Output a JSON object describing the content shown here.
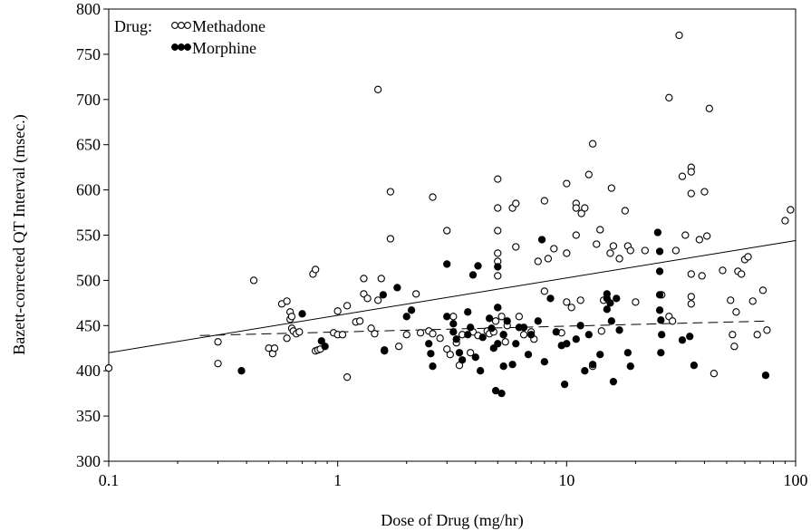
{
  "chart_data": {
    "type": "scatter",
    "xlabel": "Dose of Drug (mg/hr)",
    "ylabel": "Bazett-corrected QT Interval (msec.)",
    "x_scale": "log",
    "xlim": [
      0.1,
      100
    ],
    "ylim": [
      300,
      800
    ],
    "x_ticks": [
      0.1,
      1,
      10,
      100
    ],
    "x_tick_labels": [
      "0.1",
      "1",
      "10",
      "100"
    ],
    "y_ticks": [
      300,
      350,
      400,
      450,
      500,
      550,
      600,
      650,
      700,
      750,
      800
    ],
    "y_tick_labels": [
      "300",
      "350",
      "400",
      "450",
      "500",
      "550",
      "600",
      "650",
      "700",
      "750",
      "800"
    ],
    "grid": false,
    "legend": {
      "title": "Drug:",
      "placement": "top-left",
      "entries": [
        "Methadone",
        "Morphine"
      ]
    },
    "series": [
      {
        "name": "Methadone",
        "marker": "open-circle",
        "color": "#000000",
        "trend": {
          "style": "solid",
          "x": [
            0.1,
            100
          ],
          "y": [
            420,
            544
          ]
        },
        "points": [
          [
            0.1,
            403
          ],
          [
            0.3,
            432
          ],
          [
            0.3,
            408
          ],
          [
            0.43,
            500
          ],
          [
            0.5,
            425
          ],
          [
            0.52,
            419
          ],
          [
            0.53,
            425
          ],
          [
            0.57,
            474
          ],
          [
            0.6,
            436
          ],
          [
            0.6,
            477
          ],
          [
            0.62,
            457
          ],
          [
            0.62,
            465
          ],
          [
            0.63,
            460
          ],
          [
            0.63,
            447
          ],
          [
            0.64,
            444
          ],
          [
            0.66,
            441
          ],
          [
            0.68,
            443
          ],
          [
            0.78,
            507
          ],
          [
            0.8,
            512
          ],
          [
            0.8,
            422
          ],
          [
            0.82,
            423
          ],
          [
            0.84,
            424
          ],
          [
            0.96,
            442
          ],
          [
            1.0,
            440
          ],
          [
            1.0,
            466
          ],
          [
            1.05,
            440
          ],
          [
            1.1,
            393
          ],
          [
            1.1,
            472
          ],
          [
            1.2,
            454
          ],
          [
            1.25,
            455
          ],
          [
            1.3,
            502
          ],
          [
            1.3,
            485
          ],
          [
            1.35,
            480
          ],
          [
            1.4,
            447
          ],
          [
            1.45,
            441
          ],
          [
            1.5,
            711
          ],
          [
            1.5,
            478
          ],
          [
            1.55,
            502
          ],
          [
            1.6,
            423
          ],
          [
            1.7,
            598
          ],
          [
            1.7,
            546
          ],
          [
            1.85,
            427
          ],
          [
            2.0,
            440
          ],
          [
            2.2,
            485
          ],
          [
            2.3,
            442
          ],
          [
            2.5,
            444
          ],
          [
            2.6,
            592
          ],
          [
            2.6,
            441
          ],
          [
            2.8,
            436
          ],
          [
            3.0,
            555
          ],
          [
            3.0,
            424
          ],
          [
            3.1,
            418
          ],
          [
            3.2,
            460
          ],
          [
            3.3,
            431
          ],
          [
            3.4,
            406
          ],
          [
            3.5,
            440
          ],
          [
            3.8,
            420
          ],
          [
            3.9,
            443
          ],
          [
            4.1,
            439
          ],
          [
            4.5,
            444
          ],
          [
            4.6,
            441
          ],
          [
            4.8,
            443
          ],
          [
            4.9,
            455
          ],
          [
            5.0,
            612
          ],
          [
            5.0,
            580
          ],
          [
            5.0,
            555
          ],
          [
            5.0,
            530
          ],
          [
            5.0,
            521
          ],
          [
            5.0,
            505
          ],
          [
            5.0,
            470
          ],
          [
            5.2,
            460
          ],
          [
            5.3,
            440
          ],
          [
            5.4,
            432
          ],
          [
            5.5,
            450
          ],
          [
            5.8,
            580
          ],
          [
            6.0,
            585
          ],
          [
            6.0,
            537
          ],
          [
            6.2,
            460
          ],
          [
            6.5,
            440
          ],
          [
            7.0,
            443
          ],
          [
            7.2,
            435
          ],
          [
            7.5,
            521
          ],
          [
            8.0,
            588
          ],
          [
            8.0,
            488
          ],
          [
            8.3,
            524
          ],
          [
            8.8,
            535
          ],
          [
            9.5,
            442
          ],
          [
            10.0,
            607
          ],
          [
            10.0,
            530
          ],
          [
            10.0,
            476
          ],
          [
            10.5,
            470
          ],
          [
            11.0,
            585
          ],
          [
            11.0,
            580
          ],
          [
            11.0,
            550
          ],
          [
            11.5,
            478
          ],
          [
            11.6,
            574
          ],
          [
            12.0,
            580
          ],
          [
            12.5,
            617
          ],
          [
            13.0,
            651
          ],
          [
            13.0,
            405
          ],
          [
            13.5,
            540
          ],
          [
            14.0,
            556
          ],
          [
            14.2,
            444
          ],
          [
            14.5,
            478
          ],
          [
            15.5,
            530
          ],
          [
            15.7,
            602
          ],
          [
            16.0,
            538
          ],
          [
            17.0,
            524
          ],
          [
            18.0,
            577
          ],
          [
            18.5,
            538
          ],
          [
            19.0,
            533
          ],
          [
            20.0,
            476
          ],
          [
            22.0,
            533
          ],
          [
            26.0,
            484
          ],
          [
            28.0,
            702
          ],
          [
            28.0,
            460
          ],
          [
            29.0,
            455
          ],
          [
            30.0,
            533
          ],
          [
            31.0,
            771
          ],
          [
            32.0,
            615
          ],
          [
            33.0,
            550
          ],
          [
            35.0,
            625
          ],
          [
            35.0,
            620
          ],
          [
            35.0,
            596
          ],
          [
            35.0,
            507
          ],
          [
            35.0,
            482
          ],
          [
            35.0,
            474
          ],
          [
            38.0,
            545
          ],
          [
            39.0,
            505
          ],
          [
            40.0,
            598
          ],
          [
            41.0,
            549
          ],
          [
            42.0,
            690
          ],
          [
            44.0,
            397
          ],
          [
            48.0,
            511
          ],
          [
            52.0,
            478
          ],
          [
            53.0,
            440
          ],
          [
            54.0,
            427
          ],
          [
            55.0,
            465
          ],
          [
            56.0,
            510
          ],
          [
            58.0,
            507
          ],
          [
            60.0,
            523
          ],
          [
            62.0,
            526
          ],
          [
            65.0,
            477
          ],
          [
            68.0,
            440
          ],
          [
            72.0,
            489
          ],
          [
            75.0,
            445
          ],
          [
            90.0,
            566
          ],
          [
            95.0,
            578
          ]
        ]
      },
      {
        "name": "Morphine",
        "marker": "filled-circle",
        "color": "#000000",
        "trend": {
          "style": "dashed",
          "x": [
            0.25,
            75
          ],
          "y": [
            439,
            455
          ]
        },
        "points": [
          [
            0.38,
            400
          ],
          [
            0.7,
            463
          ],
          [
            0.85,
            433
          ],
          [
            0.88,
            427
          ],
          [
            1.58,
            484
          ],
          [
            1.6,
            422
          ],
          [
            1.82,
            492
          ],
          [
            2.0,
            460
          ],
          [
            2.1,
            467
          ],
          [
            2.5,
            430
          ],
          [
            2.55,
            419
          ],
          [
            2.6,
            405
          ],
          [
            3.0,
            518
          ],
          [
            3.0,
            460
          ],
          [
            3.2,
            452
          ],
          [
            3.2,
            443
          ],
          [
            3.3,
            435
          ],
          [
            3.4,
            420
          ],
          [
            3.5,
            412
          ],
          [
            3.7,
            465
          ],
          [
            3.7,
            440
          ],
          [
            3.8,
            448
          ],
          [
            3.9,
            506
          ],
          [
            4.0,
            415
          ],
          [
            4.1,
            516
          ],
          [
            4.2,
            400
          ],
          [
            4.3,
            437
          ],
          [
            4.6,
            458
          ],
          [
            4.7,
            447
          ],
          [
            4.8,
            425
          ],
          [
            4.9,
            378
          ],
          [
            5.0,
            470
          ],
          [
            5.0,
            430
          ],
          [
            5.0,
            515
          ],
          [
            5.2,
            375
          ],
          [
            5.3,
            440
          ],
          [
            5.3,
            405
          ],
          [
            5.5,
            455
          ],
          [
            5.8,
            407
          ],
          [
            6.0,
            430
          ],
          [
            6.2,
            448
          ],
          [
            6.5,
            448
          ],
          [
            6.8,
            418
          ],
          [
            7.0,
            440
          ],
          [
            7.5,
            455
          ],
          [
            7.8,
            545
          ],
          [
            8.0,
            410
          ],
          [
            8.5,
            480
          ],
          [
            9.0,
            443
          ],
          [
            9.5,
            428
          ],
          [
            9.8,
            385
          ],
          [
            10.0,
            430
          ],
          [
            11.0,
            435
          ],
          [
            11.5,
            450
          ],
          [
            12.0,
            400
          ],
          [
            12.5,
            440
          ],
          [
            13.0,
            407
          ],
          [
            14.0,
            418
          ],
          [
            15.0,
            485
          ],
          [
            15.0,
            480
          ],
          [
            15.0,
            468
          ],
          [
            15.5,
            475
          ],
          [
            15.7,
            455
          ],
          [
            16.0,
            388
          ],
          [
            16.5,
            480
          ],
          [
            17.0,
            445
          ],
          [
            18.5,
            420
          ],
          [
            19.0,
            405
          ],
          [
            25.0,
            553
          ],
          [
            25.5,
            532
          ],
          [
            25.5,
            510
          ],
          [
            25.5,
            484
          ],
          [
            25.5,
            467
          ],
          [
            25.8,
            456
          ],
          [
            25.8,
            420
          ],
          [
            26.0,
            440
          ],
          [
            32.0,
            434
          ],
          [
            34.5,
            438
          ],
          [
            36.0,
            406
          ],
          [
            74.0,
            395
          ]
        ]
      }
    ]
  }
}
